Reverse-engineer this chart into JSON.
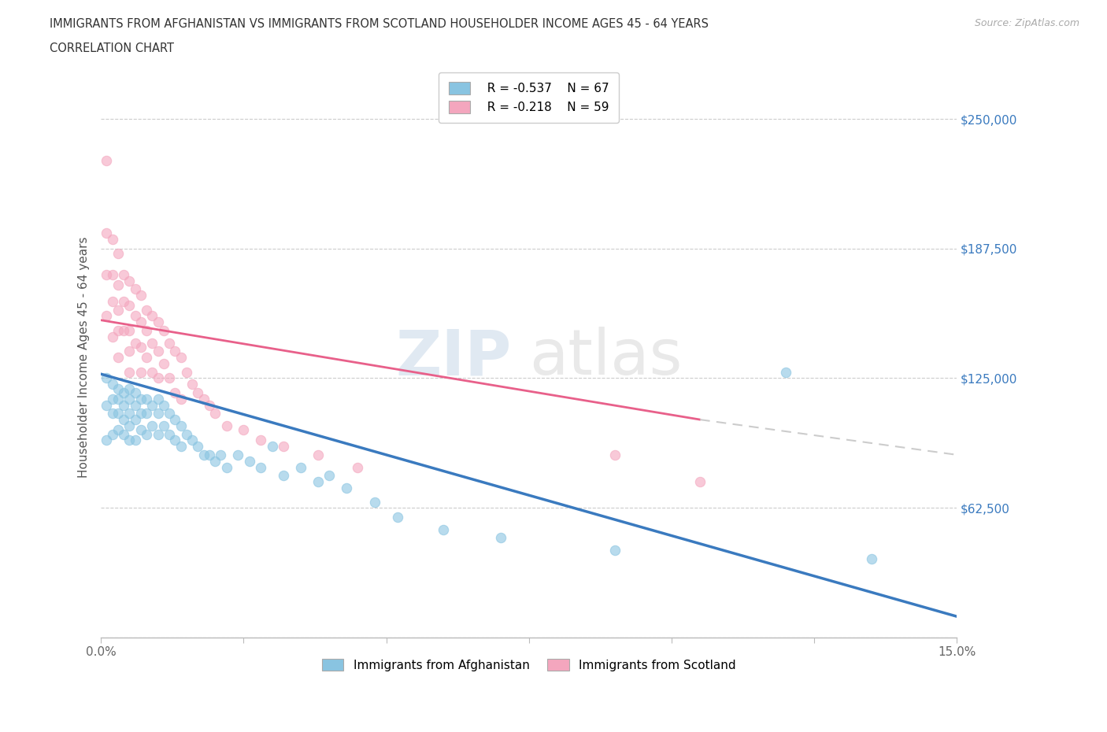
{
  "title_line1": "IMMIGRANTS FROM AFGHANISTAN VS IMMIGRANTS FROM SCOTLAND HOUSEHOLDER INCOME AGES 45 - 64 YEARS",
  "title_line2": "CORRELATION CHART",
  "source": "Source: ZipAtlas.com",
  "ylabel": "Householder Income Ages 45 - 64 years",
  "xlim": [
    0.0,
    0.15
  ],
  "ylim": [
    0,
    270000
  ],
  "xticks": [
    0.0,
    0.025,
    0.05,
    0.075,
    0.1,
    0.125,
    0.15
  ],
  "xticklabels": [
    "0.0%",
    "",
    "",
    "",
    "",
    "",
    "15.0%"
  ],
  "yticks": [
    0,
    62500,
    125000,
    187500,
    250000
  ],
  "yticklabels": [
    "",
    "$62,500",
    "$125,000",
    "$187,500",
    "$250,000"
  ],
  "legend_r_afghanistan": "R = -0.537",
  "legend_n_afghanistan": "N = 67",
  "legend_r_scotland": "R = -0.218",
  "legend_n_scotland": "N = 59",
  "color_afghanistan": "#89c4e1",
  "color_scotland": "#f4a6be",
  "color_trend_afghanistan": "#3a7abf",
  "color_trend_scotland": "#e8608a",
  "watermark_zip": "ZIP",
  "watermark_atlas": "atlas",
  "afghanistan_x": [
    0.001,
    0.001,
    0.001,
    0.002,
    0.002,
    0.002,
    0.002,
    0.003,
    0.003,
    0.003,
    0.003,
    0.004,
    0.004,
    0.004,
    0.004,
    0.005,
    0.005,
    0.005,
    0.005,
    0.005,
    0.006,
    0.006,
    0.006,
    0.006,
    0.007,
    0.007,
    0.007,
    0.008,
    0.008,
    0.008,
    0.009,
    0.009,
    0.01,
    0.01,
    0.01,
    0.011,
    0.011,
    0.012,
    0.012,
    0.013,
    0.013,
    0.014,
    0.014,
    0.015,
    0.016,
    0.017,
    0.018,
    0.019,
    0.02,
    0.021,
    0.022,
    0.024,
    0.026,
    0.028,
    0.03,
    0.032,
    0.035,
    0.038,
    0.04,
    0.043,
    0.048,
    0.052,
    0.06,
    0.07,
    0.09,
    0.12,
    0.135
  ],
  "afghanistan_y": [
    125000,
    112000,
    95000,
    122000,
    115000,
    108000,
    98000,
    120000,
    115000,
    108000,
    100000,
    118000,
    112000,
    105000,
    98000,
    120000,
    115000,
    108000,
    102000,
    95000,
    118000,
    112000,
    105000,
    95000,
    115000,
    108000,
    100000,
    115000,
    108000,
    98000,
    112000,
    102000,
    115000,
    108000,
    98000,
    112000,
    102000,
    108000,
    98000,
    105000,
    95000,
    102000,
    92000,
    98000,
    95000,
    92000,
    88000,
    88000,
    85000,
    88000,
    82000,
    88000,
    85000,
    82000,
    92000,
    78000,
    82000,
    75000,
    78000,
    72000,
    65000,
    58000,
    52000,
    48000,
    42000,
    128000,
    38000
  ],
  "scotland_x": [
    0.001,
    0.001,
    0.001,
    0.001,
    0.002,
    0.002,
    0.002,
    0.002,
    0.003,
    0.003,
    0.003,
    0.003,
    0.003,
    0.004,
    0.004,
    0.004,
    0.005,
    0.005,
    0.005,
    0.005,
    0.005,
    0.006,
    0.006,
    0.006,
    0.007,
    0.007,
    0.007,
    0.007,
    0.008,
    0.008,
    0.008,
    0.009,
    0.009,
    0.009,
    0.01,
    0.01,
    0.01,
    0.011,
    0.011,
    0.012,
    0.012,
    0.013,
    0.013,
    0.014,
    0.014,
    0.015,
    0.016,
    0.017,
    0.018,
    0.019,
    0.02,
    0.022,
    0.025,
    0.028,
    0.032,
    0.038,
    0.045,
    0.09,
    0.105
  ],
  "scotland_y": [
    230000,
    195000,
    175000,
    155000,
    192000,
    175000,
    162000,
    145000,
    185000,
    170000,
    158000,
    148000,
    135000,
    175000,
    162000,
    148000,
    172000,
    160000,
    148000,
    138000,
    128000,
    168000,
    155000,
    142000,
    165000,
    152000,
    140000,
    128000,
    158000,
    148000,
    135000,
    155000,
    142000,
    128000,
    152000,
    138000,
    125000,
    148000,
    132000,
    142000,
    125000,
    138000,
    118000,
    135000,
    115000,
    128000,
    122000,
    118000,
    115000,
    112000,
    108000,
    102000,
    100000,
    95000,
    92000,
    88000,
    82000,
    88000,
    75000
  ],
  "trend_afg_x0": 0.0,
  "trend_afg_x1": 0.15,
  "trend_afg_y0": 127000,
  "trend_afg_y1": 10000,
  "trend_sco_x0": 0.0,
  "trend_sco_x1": 0.15,
  "trend_sco_y0": 153000,
  "trend_sco_y1": 88000,
  "trend_sco_solid_x1": 0.105,
  "trend_sco_solid_y1": 105000
}
